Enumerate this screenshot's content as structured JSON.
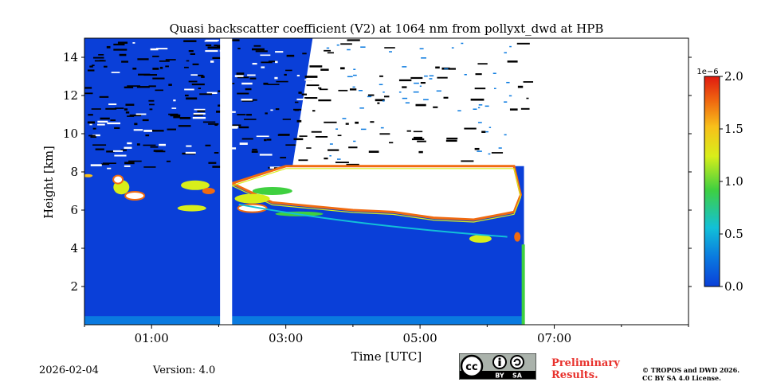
{
  "chart_data": {
    "type": "heatmap",
    "title": "Quasi backscatter coefficient (V2) at 1064 nm from pollyxt_dwd at HPB",
    "xlabel": "Time [UTC]",
    "ylabel": "Height [km]",
    "x_range_hours": [
      0,
      9
    ],
    "x_ticks": [
      {
        "value": 1,
        "label": "01:00"
      },
      {
        "value": 3,
        "label": "03:00"
      },
      {
        "value": 5,
        "label": "05:00"
      },
      {
        "value": 7,
        "label": "07:00"
      }
    ],
    "y_range_km": [
      0,
      15
    ],
    "y_ticks": [
      {
        "value": 2,
        "label": "2"
      },
      {
        "value": 4,
        "label": "4"
      },
      {
        "value": 6,
        "label": "6"
      },
      {
        "value": 8,
        "label": "8"
      },
      {
        "value": 10,
        "label": "10"
      },
      {
        "value": 12,
        "label": "12"
      },
      {
        "value": 14,
        "label": "14"
      }
    ],
    "data_gap_hours": [
      2.02,
      2.2
    ],
    "data_end_hour": 6.55,
    "cloud_base_km": [
      {
        "t": 2.2,
        "h": 7.4
      },
      {
        "t": 2.8,
        "h": 6.4
      },
      {
        "t": 3.4,
        "h": 6.2
      },
      {
        "t": 4.0,
        "h": 6.0
      },
      {
        "t": 4.6,
        "h": 5.9
      },
      {
        "t": 5.2,
        "h": 5.6
      },
      {
        "t": 5.8,
        "h": 5.5
      },
      {
        "t": 6.4,
        "h": 5.9
      }
    ],
    "colorbar": {
      "min": 0.0,
      "max": 2.0,
      "multiplier_label": "1e−6",
      "tick_labels": [
        "0.0",
        "0.5",
        "1.0",
        "1.5",
        "2.0"
      ],
      "tick_values": [
        0.0,
        0.5,
        1.0,
        1.5,
        2.0
      ],
      "colors": [
        "#0a3fd8",
        "#0a7ae0",
        "#12c0d8",
        "#3fd040",
        "#d8ee1a",
        "#f8c01a",
        "#f06a10",
        "#e01a10"
      ]
    }
  },
  "footer": {
    "date": "2026-02-04",
    "version": "Version: 4.0",
    "preliminary_line1": "Preliminary",
    "preliminary_line2": "Results.",
    "copyright_line1": "© TROPOS and DWD 2026.",
    "copyright_line2": "CC BY SA 4.0 License.",
    "license_badge": {
      "cc": "cc",
      "by": "BY",
      "sa": "SA",
      "icon_by": "person-icon",
      "icon_sa": "share-alike-icon"
    }
  }
}
